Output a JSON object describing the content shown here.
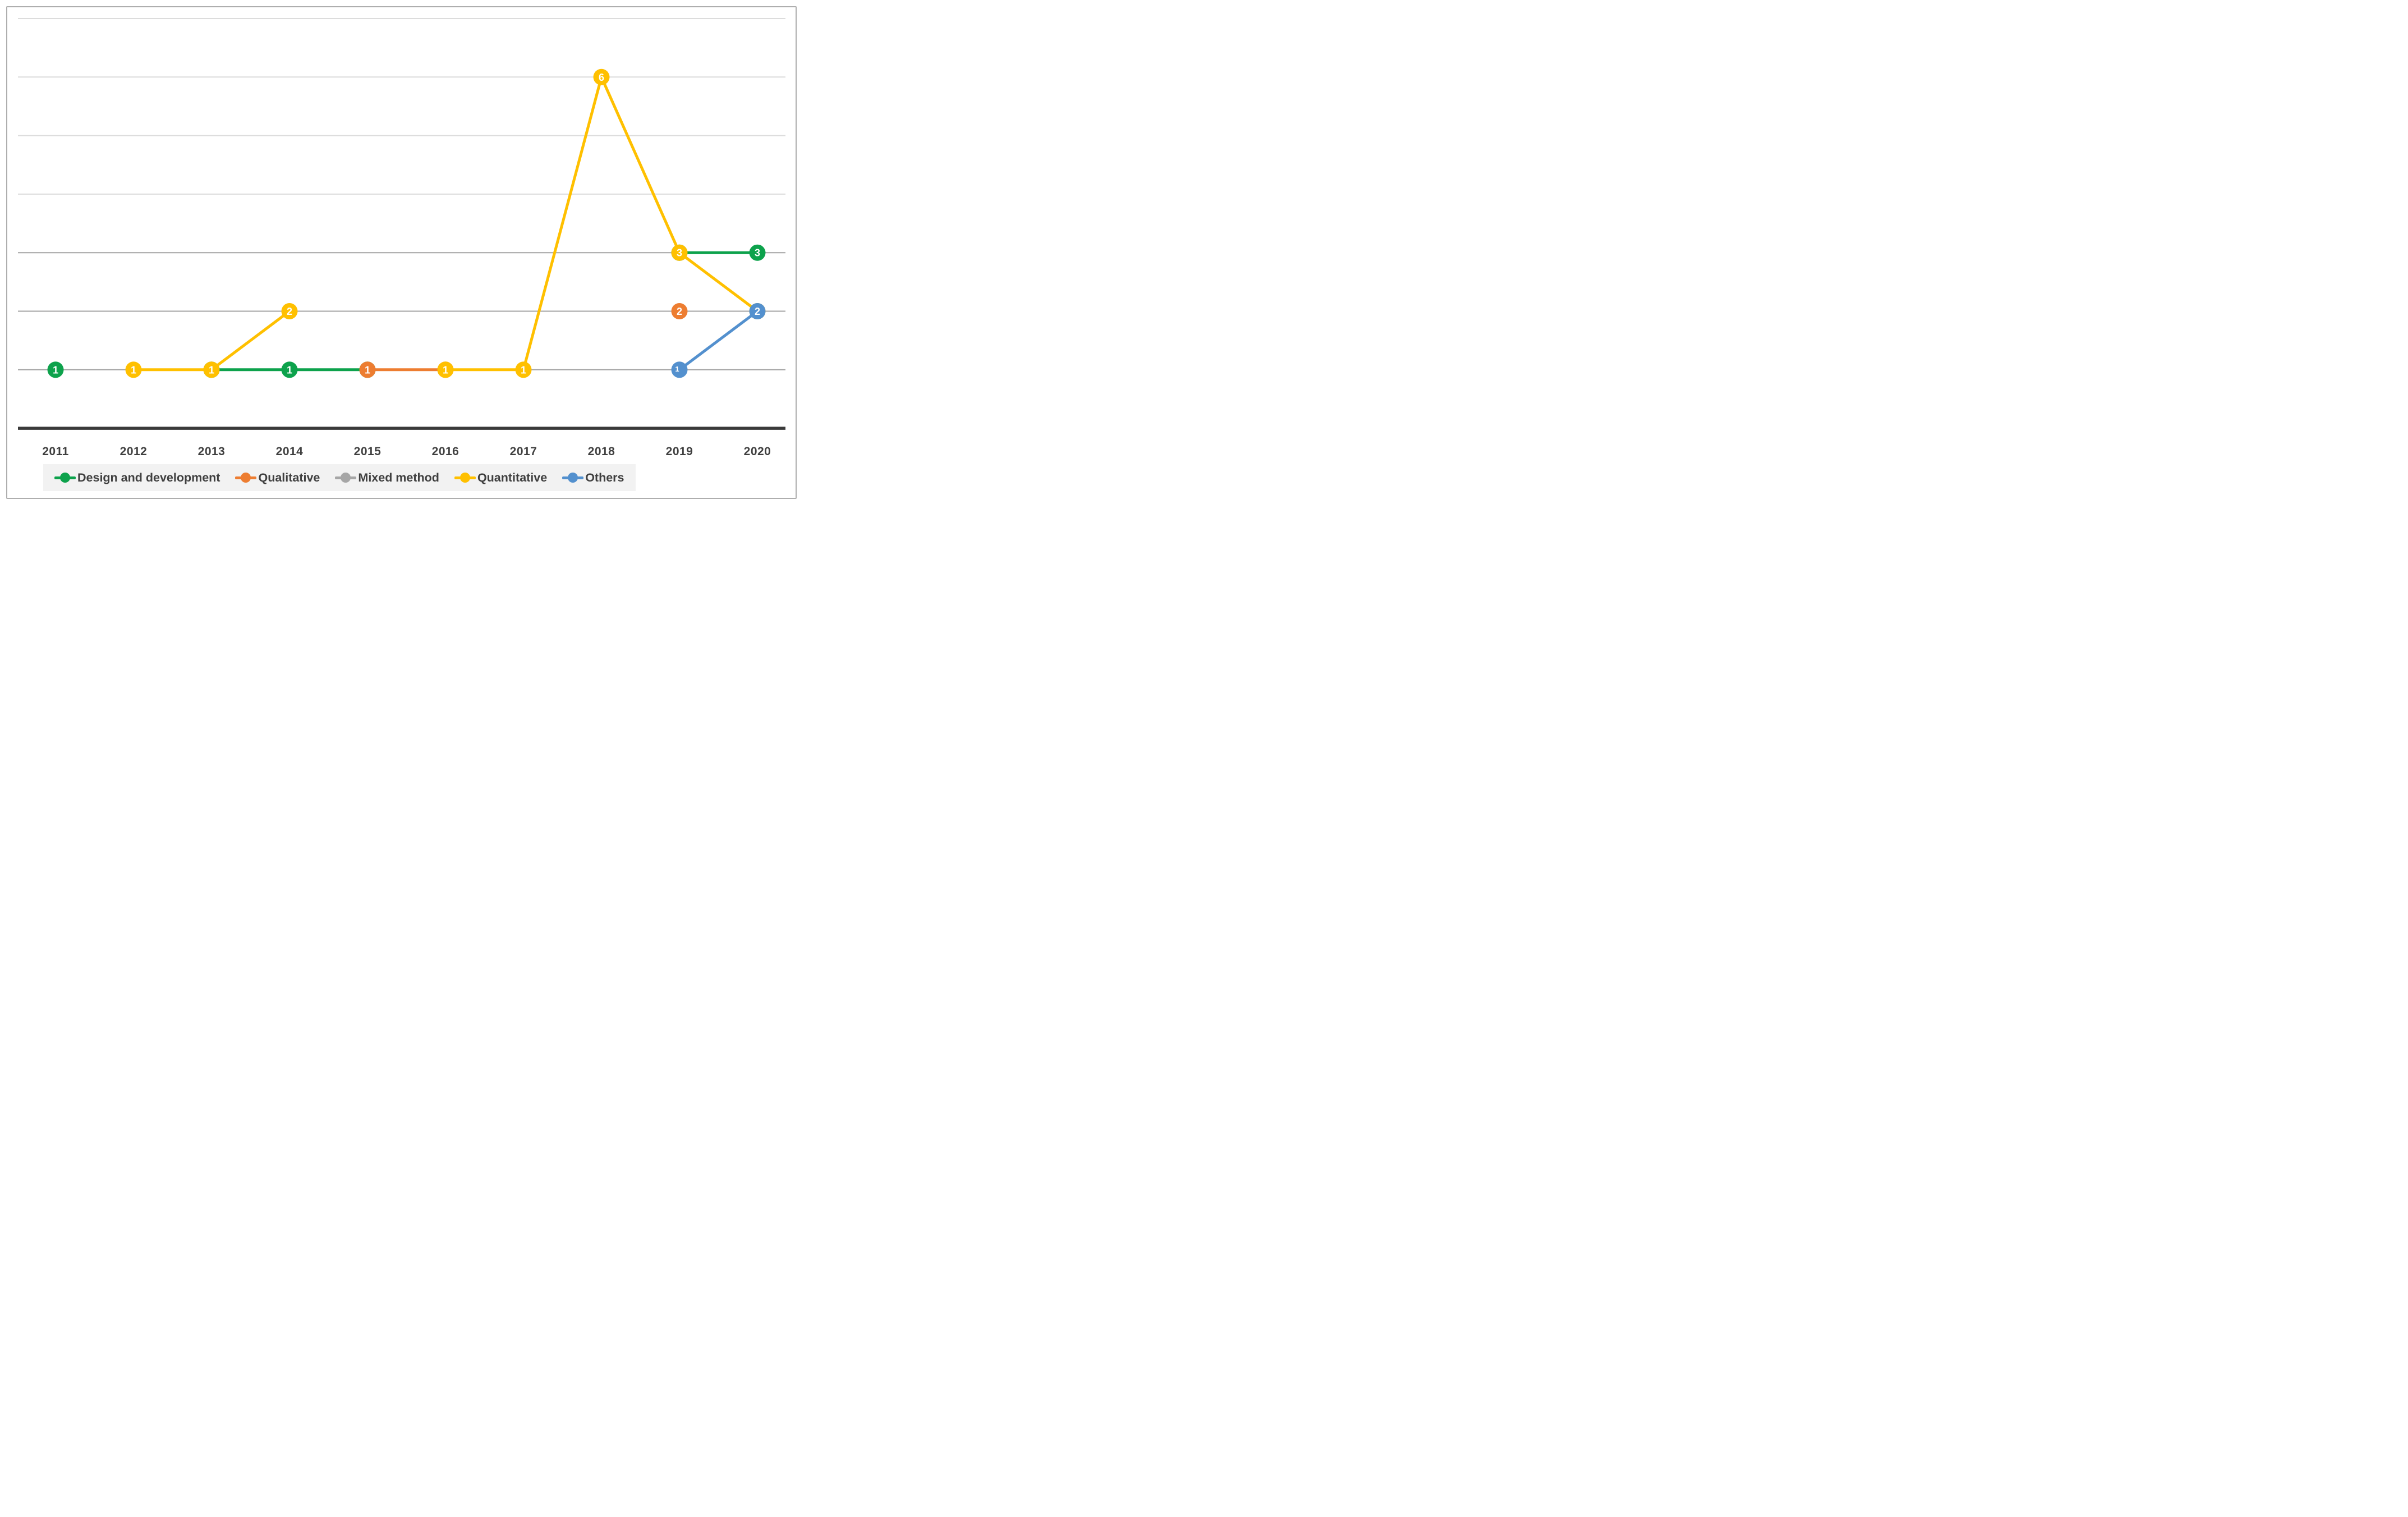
{
  "figure": {
    "background": "#FFFFFF",
    "border_color": "#AEAEAE"
  },
  "chart_data": {
    "type": "line",
    "title": "",
    "xlabel": "",
    "ylabel": "",
    "categories": [
      "2011",
      "2012",
      "2013",
      "2014",
      "2015",
      "2016",
      "2017",
      "2018",
      "2019",
      "2020"
    ],
    "series": [
      {
        "name": "Design and development",
        "color": "#0DA24C",
        "values": [
          1,
          null,
          1,
          1,
          1,
          null,
          null,
          null,
          3,
          3
        ]
      },
      {
        "name": "Qualitative",
        "color": "#ED7D31",
        "values": [
          null,
          null,
          null,
          null,
          1,
          1,
          null,
          null,
          2,
          null
        ]
      },
      {
        "name": "Mixed method",
        "color": "#A6A6A6",
        "values": [
          null,
          null,
          null,
          null,
          null,
          null,
          null,
          null,
          null,
          null
        ]
      },
      {
        "name": "Quantitative",
        "color": "#FFC000",
        "values": [
          null,
          1,
          1,
          2,
          null,
          1,
          1,
          6,
          3,
          2
        ]
      },
      {
        "name": "Others",
        "color": "#5390CE",
        "values": [
          null,
          null,
          null,
          null,
          null,
          null,
          null,
          null,
          1,
          2
        ],
        "small_label_indices": [
          8
        ]
      }
    ],
    "ylim": [
      0,
      7
    ],
    "grid": {
      "interval": 1,
      "dark_line_color": "#A3A3A3",
      "light_line_color": "#DCDCDC",
      "dark_lines_up_to_value": 3,
      "legend_position": "bottom"
    },
    "axis": {
      "line_color": "#3A3A3A",
      "tick_label_color": "#3F3F3F"
    },
    "data_labels": {
      "color": "#FFFFFF"
    },
    "legend": {
      "background": "#F2F2F2",
      "text_color": "#3F3F3F"
    }
  }
}
